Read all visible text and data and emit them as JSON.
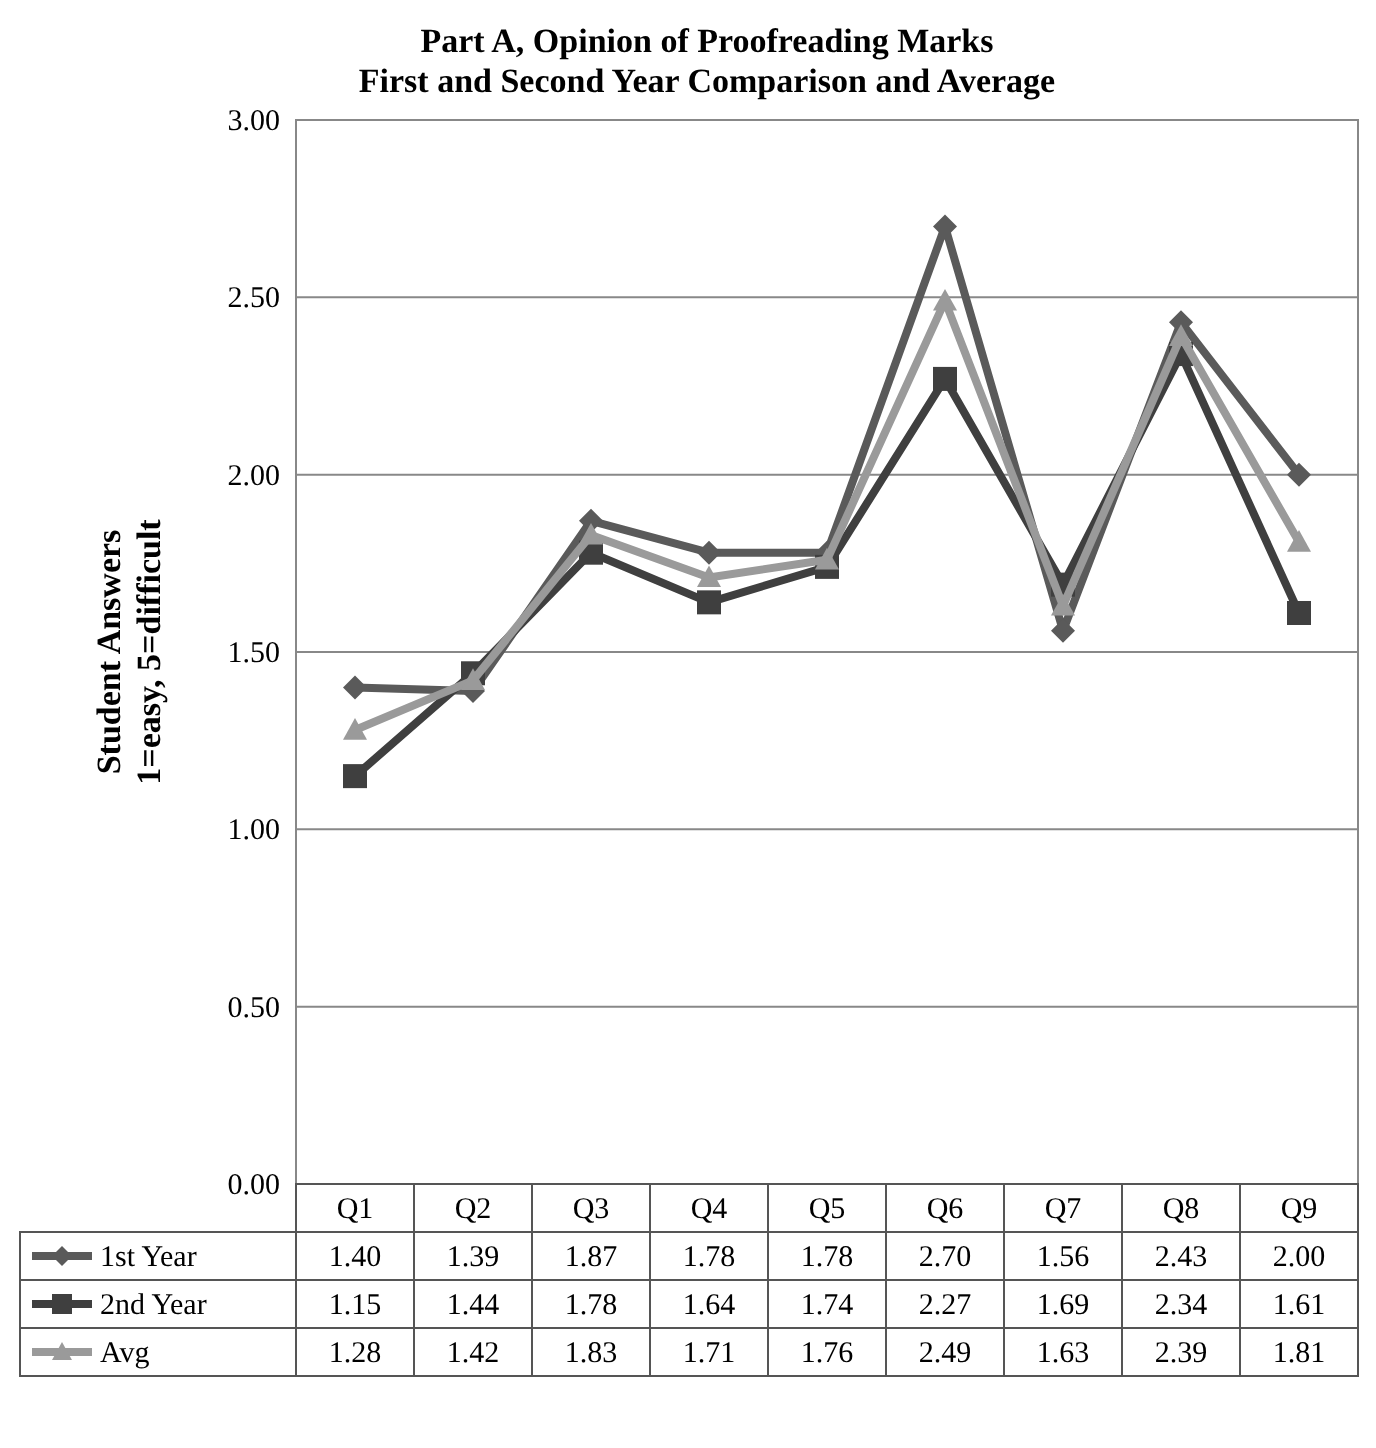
{
  "chart_data": {
    "type": "line",
    "title": "Part A, Opinion of Proofreading Marks",
    "subtitle": "First and Second Year Comparison and Average",
    "ylabel": "Student Answers\n1=easy, 5=difficult",
    "categories": [
      "Q1",
      "Q2",
      "Q3",
      "Q4",
      "Q5",
      "Q6",
      "Q7",
      "Q8",
      "Q9"
    ],
    "series": [
      {
        "name": "1st Year",
        "color": "#5a5a5a",
        "marker": "diamond",
        "values": [
          1.4,
          1.39,
          1.87,
          1.78,
          1.78,
          2.7,
          1.56,
          2.43,
          2.0
        ],
        "value_labels": [
          "1.40",
          "1.39",
          "1.87",
          "1.78",
          "1.78",
          "2.70",
          "1.56",
          "2.43",
          "2.00"
        ]
      },
      {
        "name": "2nd Year",
        "color": "#3f3f3f",
        "marker": "square",
        "values": [
          1.15,
          1.44,
          1.78,
          1.64,
          1.74,
          2.27,
          1.69,
          2.34,
          1.61
        ],
        "value_labels": [
          "1.15",
          "1.44",
          "1.78",
          "1.64",
          "1.74",
          "2.27",
          "1.69",
          "2.34",
          "1.61"
        ]
      },
      {
        "name": "Avg",
        "color": "#9a9a9a",
        "marker": "triangle",
        "values": [
          1.28,
          1.42,
          1.83,
          1.71,
          1.76,
          2.49,
          1.63,
          2.39,
          1.81
        ],
        "value_labels": [
          "1.28",
          "1.42",
          "1.83",
          "1.71",
          "1.76",
          "2.49",
          "1.63",
          "2.39",
          "1.81"
        ]
      }
    ],
    "ylim": [
      0,
      3
    ],
    "yticks": [
      {
        "value": 0,
        "label": "0.00"
      },
      {
        "value": 0.5,
        "label": "0.50"
      },
      {
        "value": 1,
        "label": "1.00"
      },
      {
        "value": 1.5,
        "label": "1.50"
      },
      {
        "value": 2,
        "label": "2.00"
      },
      {
        "value": 2.5,
        "label": "2.50"
      },
      {
        "value": 3,
        "label": "3.00"
      }
    ],
    "grid": "y",
    "legend": "bottom",
    "line_style": "solid"
  }
}
